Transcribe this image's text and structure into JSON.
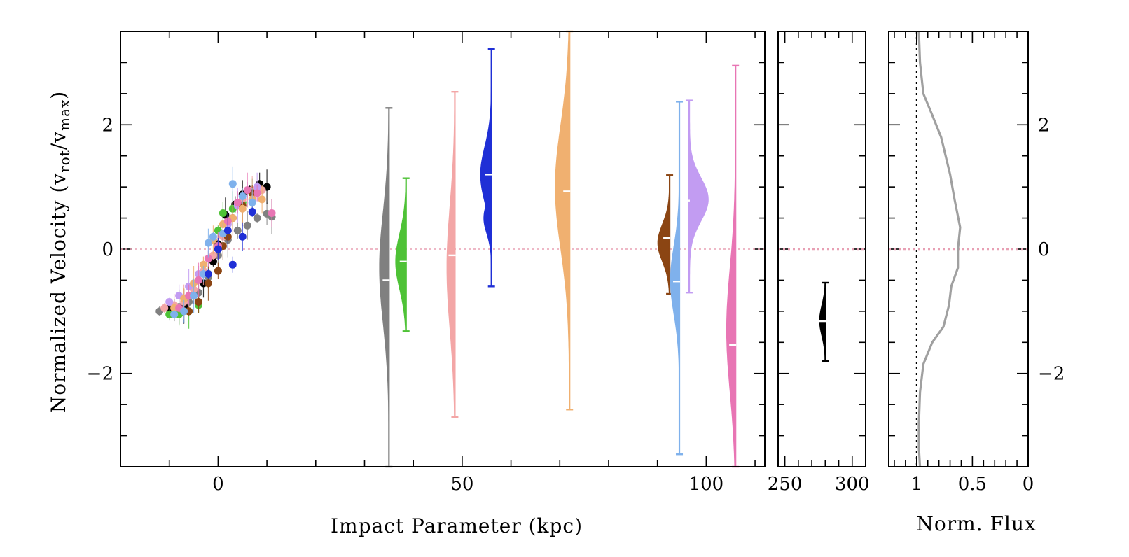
{
  "chart_data": {
    "type": "scatter",
    "ylabel_main": "Normalized Velocity (v",
    "ylabel_sub_rot": "rot",
    "ylabel_slash": "/v",
    "ylabel_sub_max": "max",
    "ylabel_close": ")",
    "ylim": [
      -3.5,
      3.5
    ],
    "zero_line": {
      "y": 0,
      "style": "dotted",
      "color": "#e8a0b4"
    },
    "panels": [
      {
        "name": "main",
        "xlabel": "Impact Parameter (kpc)",
        "xlim": [
          -20,
          112
        ],
        "x_ticks": [
          0,
          50,
          100
        ],
        "y_ticks": [
          -2,
          0,
          2
        ],
        "y_tick_labels_side": "left"
      },
      {
        "name": "far",
        "xlabel": "",
        "xlim": [
          245,
          310
        ],
        "x_ticks": [
          250,
          300
        ],
        "y_ticks": [
          -2,
          0,
          2
        ]
      },
      {
        "name": "flux",
        "xlabel": "Norm. Flux",
        "xlim": [
          1.25,
          0
        ],
        "x_ticks": [
          1,
          0.5,
          0
        ],
        "x_tick_labels": [
          "1",
          "0.5",
          "0"
        ],
        "y_ticks": [
          -2,
          0,
          2
        ],
        "y_tick_labels_side": "right",
        "reference_line": {
          "x": 1,
          "style": "dotted",
          "color": "#000000"
        }
      }
    ],
    "rotation_curves": [
      {
        "color": "#808080",
        "points": [
          [
            -12,
            -1.0
          ],
          [
            -10,
            -0.97
          ],
          [
            -8,
            -0.93
          ],
          [
            -6,
            -0.85
          ],
          [
            -4,
            -0.7
          ],
          [
            -2,
            -0.45
          ],
          [
            0,
            -0.1
          ],
          [
            2,
            0.15
          ],
          [
            4,
            0.3
          ],
          [
            6,
            0.38
          ],
          [
            8,
            0.5
          ],
          [
            10,
            0.57
          ],
          [
            11,
            0.52
          ]
        ]
      },
      {
        "color": "#000000",
        "points": [
          [
            -10,
            -0.95
          ],
          [
            -9,
            -0.98
          ],
          [
            -7,
            -0.92
          ],
          [
            -5,
            -0.75
          ],
          [
            -3,
            -0.55
          ],
          [
            -1,
            -0.2
          ],
          [
            0,
            0.08
          ],
          [
            1.5,
            0.55
          ],
          [
            3.5,
            0.72
          ],
          [
            5,
            0.88
          ],
          [
            6.5,
            0.95
          ],
          [
            8.5,
            1.05
          ],
          [
            10,
            1.0
          ]
        ]
      },
      {
        "color": "#4ec236",
        "points": [
          [
            -10,
            -1.05
          ],
          [
            -8,
            -1.05
          ],
          [
            -6,
            -1.0
          ],
          [
            -4,
            -0.9
          ],
          [
            -2,
            -0.4
          ],
          [
            0,
            0.3
          ],
          [
            1,
            0.58
          ],
          [
            3,
            0.65
          ],
          [
            5,
            0.75
          ],
          [
            7,
            0.9
          ]
        ]
      },
      {
        "color": "#f3a6a6",
        "points": [
          [
            -11,
            -0.95
          ],
          [
            -9,
            -0.9
          ],
          [
            -7,
            -0.85
          ],
          [
            -5,
            -0.65
          ],
          [
            -3,
            -0.35
          ],
          [
            -1,
            -0.1
          ],
          [
            1,
            0.2
          ],
          [
            3,
            0.5
          ],
          [
            5,
            0.8
          ],
          [
            7,
            0.95
          ],
          [
            9,
            0.95
          ]
        ]
      },
      {
        "color": "#c29cf2",
        "points": [
          [
            -10,
            -0.85
          ],
          [
            -8,
            -0.75
          ],
          [
            -6,
            -0.6
          ],
          [
            -4,
            -0.4
          ],
          [
            -2,
            -0.15
          ],
          [
            0,
            0.05
          ],
          [
            2,
            0.4
          ],
          [
            4,
            0.7
          ],
          [
            6,
            0.95
          ],
          [
            8,
            1.0
          ]
        ]
      },
      {
        "color": "#8b4513",
        "points": [
          [
            -6,
            -1.0
          ],
          [
            -4,
            -0.85
          ],
          [
            -2,
            -0.55
          ],
          [
            0,
            -0.35
          ],
          [
            1,
            0.05
          ],
          [
            2,
            0.2
          ],
          [
            3,
            0.5
          ],
          [
            5,
            0.7
          ],
          [
            7,
            0.9
          ]
        ]
      },
      {
        "color": "#f0b070",
        "points": [
          [
            -9,
            -0.95
          ],
          [
            -7,
            -0.8
          ],
          [
            -5,
            -0.55
          ],
          [
            -3,
            -0.25
          ],
          [
            -1,
            0.15
          ],
          [
            1,
            0.4
          ],
          [
            3,
            0.5
          ],
          [
            5,
            0.65
          ],
          [
            7,
            0.8
          ],
          [
            9,
            0.8
          ]
        ]
      },
      {
        "color": "#e875b4",
        "points": [
          [
            -8,
            -0.95
          ],
          [
            -6,
            -0.75
          ],
          [
            -4,
            -0.5
          ],
          [
            -2,
            -0.15
          ],
          [
            0,
            0.05
          ],
          [
            2,
            0.45
          ],
          [
            4,
            0.75
          ],
          [
            6,
            0.95
          ],
          [
            8,
            0.9
          ],
          [
            11,
            0.58
          ]
        ]
      },
      {
        "color": "#7fb1ec",
        "points": [
          [
            -9,
            -1.05
          ],
          [
            -7,
            -1.0
          ],
          [
            -5,
            -0.75
          ],
          [
            -3,
            -0.4
          ],
          [
            -2,
            0.1
          ],
          [
            -1,
            0.2
          ],
          [
            1,
            0.25
          ],
          [
            3,
            1.05
          ],
          [
            5,
            0.85
          ],
          [
            7,
            0.75
          ]
        ]
      },
      {
        "color": "#1f2fd6",
        "points": [
          [
            -2,
            -0.4
          ],
          [
            0,
            0.0
          ],
          [
            2,
            0.3
          ],
          [
            3,
            -0.25
          ],
          [
            5,
            0.2
          ],
          [
            7,
            0.6
          ]
        ]
      }
    ],
    "violins": [
      {
        "panel": "main",
        "x": 35,
        "color": "#808080",
        "lo": -3.5,
        "hi": 2.27,
        "median": -0.5,
        "side": "left",
        "width": 2.0,
        "modes": [
          [
            -0.3,
            0.9,
            1.0
          ]
        ]
      },
      {
        "panel": "main",
        "x": 38.5,
        "color": "#4ec236",
        "lo": -1.32,
        "hi": 1.14,
        "median": -0.2,
        "side": "left",
        "width": 2.2,
        "modes": [
          [
            -0.2,
            0.45,
            1.0
          ]
        ]
      },
      {
        "panel": "main",
        "x": 48.5,
        "color": "#f3a6a6",
        "lo": -2.7,
        "hi": 2.53,
        "median": -0.1,
        "side": "left",
        "width": 1.7,
        "modes": [
          [
            -0.3,
            1.0,
            1.0
          ]
        ]
      },
      {
        "panel": "main",
        "x": 56,
        "color": "#1f2fd6",
        "lo": -0.6,
        "hi": 3.22,
        "median": 1.2,
        "side": "left",
        "width": 2.3,
        "modes": [
          [
            1.2,
            0.45,
            1.0
          ],
          [
            0.5,
            0.25,
            0.7
          ]
        ]
      },
      {
        "panel": "main",
        "x": 72,
        "color": "#f0b070",
        "lo": -2.58,
        "hi": 3.5,
        "median": 0.93,
        "side": "left",
        "width": 3.0,
        "modes": [
          [
            1.0,
            1.0,
            1.0
          ]
        ]
      },
      {
        "panel": "main",
        "x": 92.5,
        "color": "#8b4513",
        "lo": -0.72,
        "hi": 1.19,
        "median": 0.18,
        "side": "left",
        "width": 2.5,
        "modes": [
          [
            0.1,
            0.3,
            1.0
          ]
        ]
      },
      {
        "panel": "main",
        "x": 94.5,
        "color": "#7fb1ec",
        "lo": -3.3,
        "hi": 2.37,
        "median": -0.52,
        "side": "left",
        "width": 1.9,
        "modes": [
          [
            -0.5,
            0.55,
            1.0
          ]
        ]
      },
      {
        "panel": "main",
        "x": 96.5,
        "color": "#c29cf2",
        "lo": -0.7,
        "hi": 2.39,
        "median": 0.78,
        "side": "right",
        "width": 4.0,
        "modes": [
          [
            0.8,
            0.35,
            1.0
          ]
        ]
      },
      {
        "panel": "main",
        "x": 106,
        "color": "#e875b4",
        "lo": -3.5,
        "hi": 2.95,
        "median": -1.54,
        "side": "left",
        "width": 1.9,
        "modes": [
          [
            -1.3,
            1.0,
            1.0
          ]
        ]
      },
      {
        "panel": "far",
        "x": 280,
        "color": "#000000",
        "lo": -1.8,
        "hi": -0.54,
        "median": -1.16,
        "side": "left",
        "width": 4.5,
        "modes": [
          [
            -1.15,
            0.25,
            1.0
          ]
        ]
      }
    ],
    "flux_profile": {
      "color": "#a0a0a0",
      "points": [
        [
          0.98,
          3.5
        ],
        [
          0.97,
          3.0
        ],
        [
          0.94,
          2.5
        ],
        [
          0.87,
          2.2
        ],
        [
          0.78,
          1.8
        ],
        [
          0.7,
          1.2
        ],
        [
          0.66,
          0.8
        ],
        [
          0.61,
          0.35
        ],
        [
          0.63,
          0.0
        ],
        [
          0.63,
          -0.3
        ],
        [
          0.69,
          -0.6
        ],
        [
          0.71,
          -0.9
        ],
        [
          0.76,
          -1.25
        ],
        [
          0.86,
          -1.5
        ],
        [
          0.94,
          -1.85
        ],
        [
          0.97,
          -2.3
        ],
        [
          0.98,
          -2.8
        ],
        [
          0.98,
          -3.2
        ],
        [
          0.97,
          -3.5
        ]
      ]
    }
  }
}
